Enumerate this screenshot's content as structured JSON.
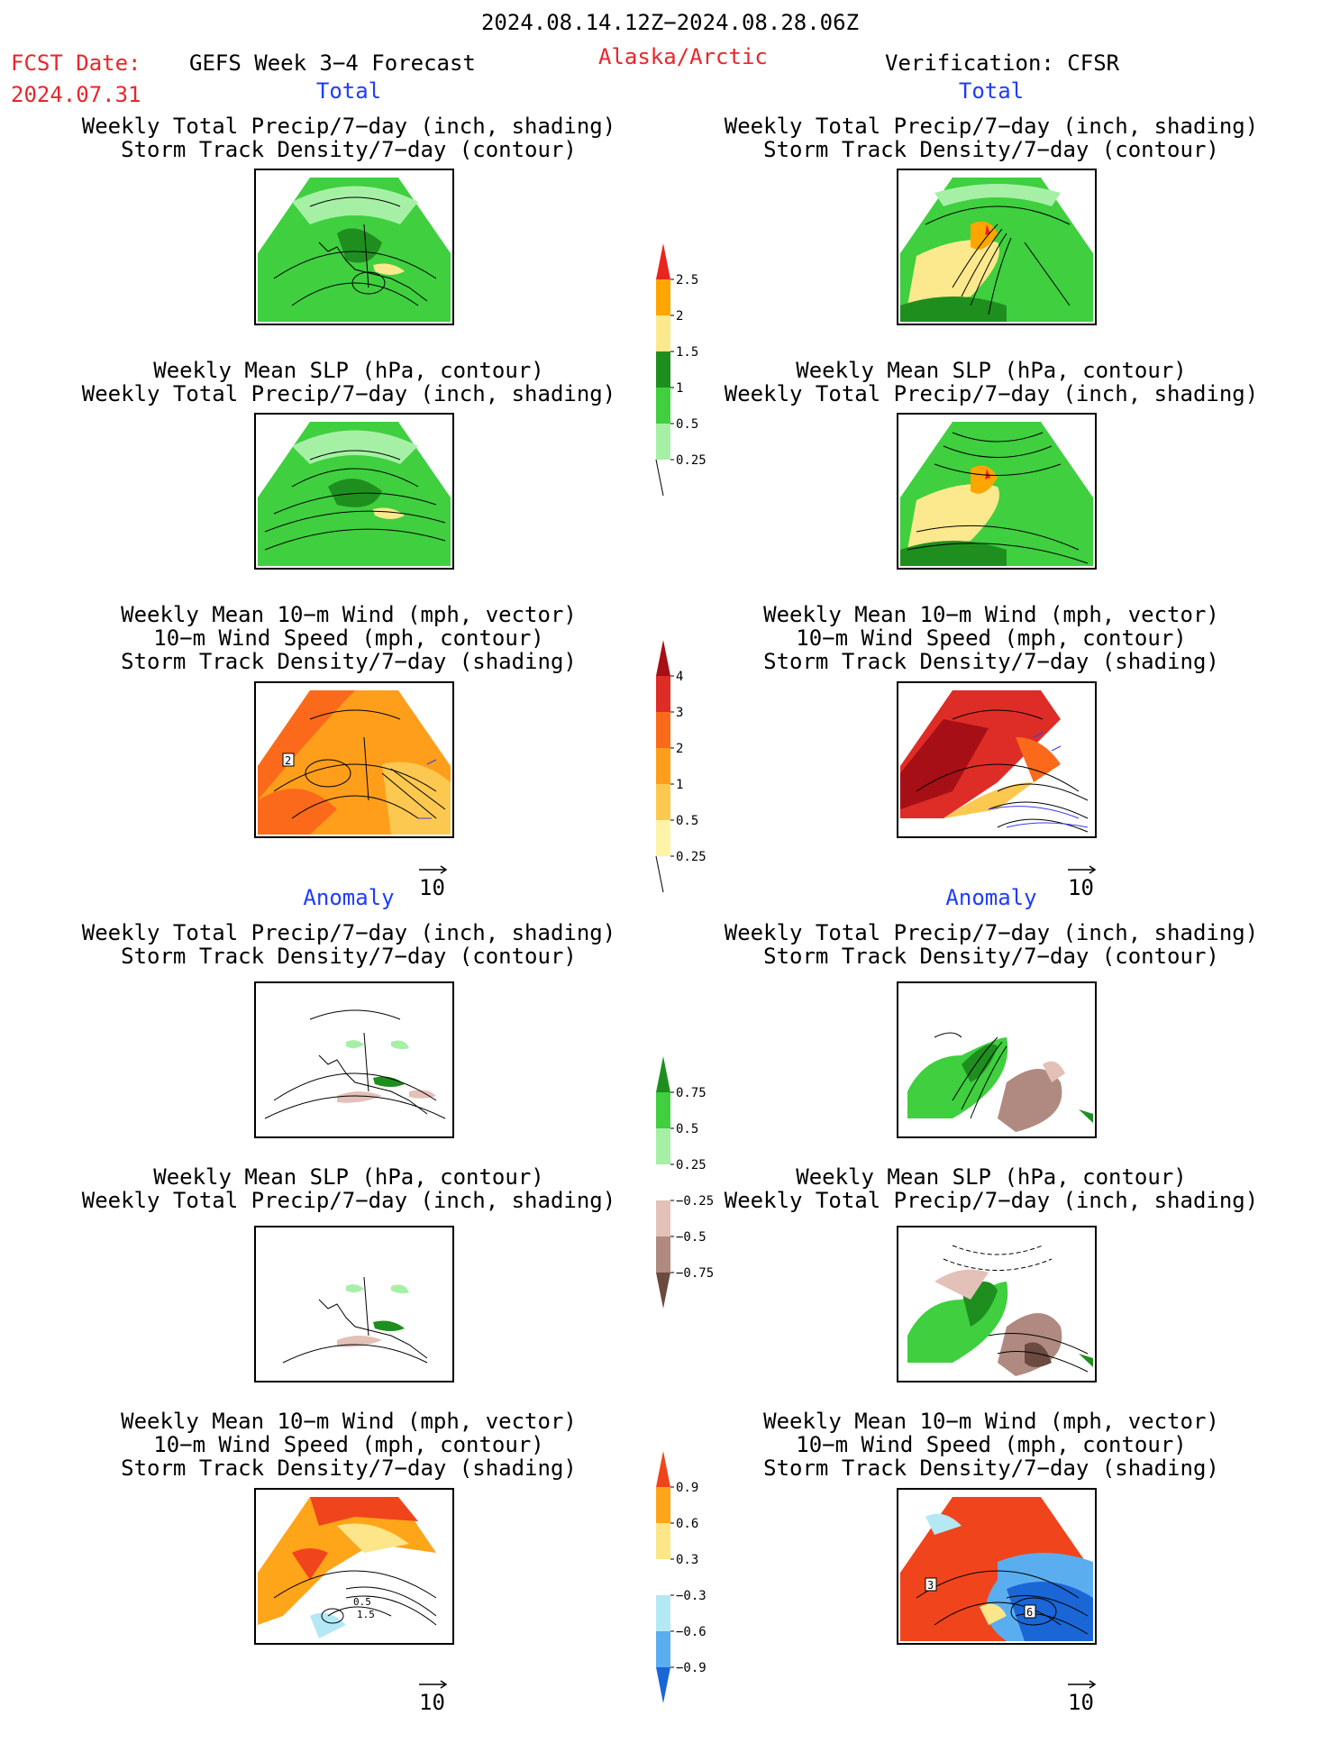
{
  "header": {
    "date_range": "2024.08.14.12Z−2024.08.28.06Z",
    "fcst_label": "FCST Date:",
    "fcst_value": "2024.07.31",
    "model": "GEFS Week 3−4 Forecast",
    "region": "Alaska/Arctic",
    "verification": "Verification: CFSR"
  },
  "sections": {
    "total": "Total",
    "anomaly": "Anomaly"
  },
  "titles": {
    "precip_storm_1": "Weekly Total Precip/7−day (inch, shading)",
    "precip_storm_2": "Storm Track Density/7−day (contour)",
    "slp_1": "Weekly Mean SLP (hPa, contour)",
    "slp_2": "Weekly Total Precip/7−day (inch, shading)",
    "wind_1": "Weekly Mean 10−m Wind (mph, vector)",
    "wind_2": "10−m Wind Speed (mph, contour)",
    "wind_3": "Storm Track Density/7−day (shading)"
  },
  "vector_ref": "10",
  "colorbars": {
    "precip_total": {
      "labels": [
        "2.5",
        "2",
        "1.5",
        "1",
        "0.5",
        "0.25"
      ],
      "colors": [
        "#e8261c",
        "#ffa500",
        "#fde98d",
        "#1e8f1e",
        "#3fcf3f",
        "#a6f0a6"
      ]
    },
    "storm_total": {
      "labels": [
        "4",
        "3",
        "2",
        "1",
        "0.5",
        "0.25"
      ],
      "colors": [
        "#a50f15",
        "#de2d26",
        "#fb6a1a",
        "#ff9e1a",
        "#fdc850",
        "#fff3a8"
      ]
    },
    "precip_anom": {
      "labels": [
        "0.75",
        "0.5",
        "0.25",
        "−0.25",
        "−0.5",
        "−0.75"
      ],
      "colors": [
        "#1e8f1e",
        "#3fcf3f",
        "#a6f0a6",
        "#ffffff",
        "#e3c1b8",
        "#b08a80",
        "#6b4a40"
      ]
    },
    "storm_anom": {
      "labels": [
        "0.9",
        "0.6",
        "0.3",
        "−0.3",
        "−0.6",
        "−0.9"
      ],
      "colors": [
        "#f0441c",
        "#ffa51a",
        "#fde68a",
        "#ffffff",
        "#b5e8f5",
        "#5aaef0",
        "#1a66d6"
      ]
    }
  },
  "map_labels": {
    "left_wind_total_label": "2",
    "left_wind_anom_label_1": "0.5",
    "left_wind_anom_label_2": "1.5",
    "right_wind_anom_label_1": "3",
    "right_wind_anom_label_2": "6"
  }
}
